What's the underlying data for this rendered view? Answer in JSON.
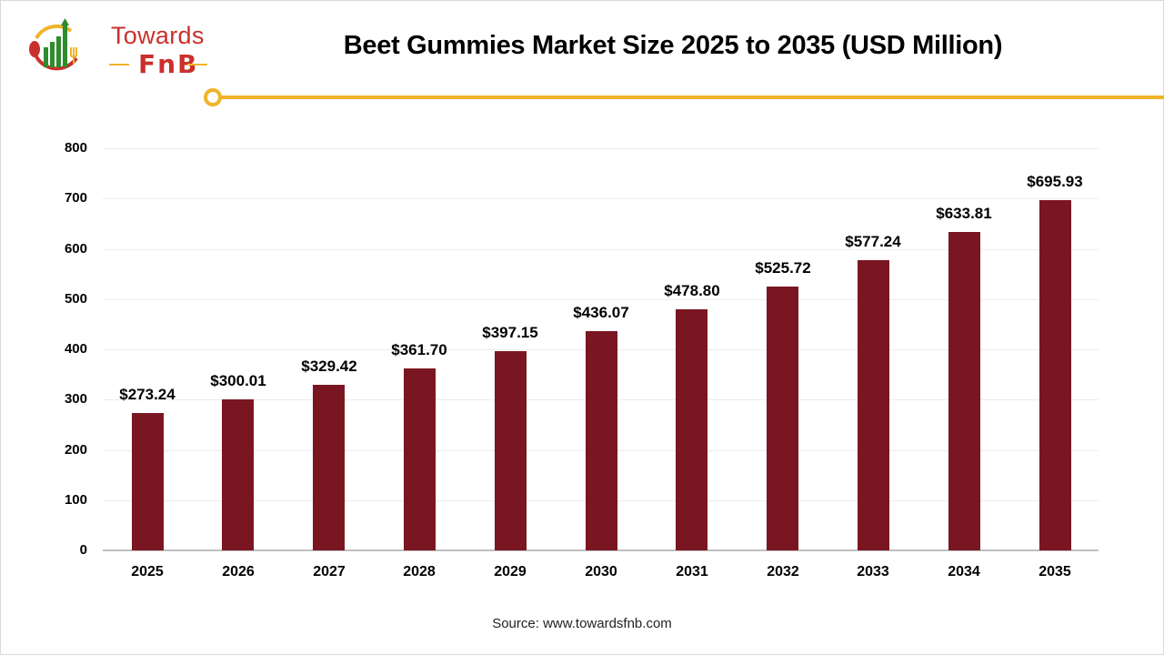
{
  "logo": {
    "line1": "Towards",
    "line2": "FnB"
  },
  "header": {
    "title": "Beet Gummies Market Size 2025 to 2035 (USD Million)"
  },
  "footer": {
    "source": "Source: www.towardsfnb.com"
  },
  "colors": {
    "bar": "#7a1621",
    "accent": "#f0b429",
    "logo_red": "#c9302c",
    "logo_green": "#2e8b2e"
  },
  "chart_data": {
    "type": "bar",
    "title": "Beet Gummies Market Size 2025 to 2035 (USD Million)",
    "xlabel": "",
    "ylabel": "",
    "categories": [
      "2025",
      "2026",
      "2027",
      "2028",
      "2029",
      "2030",
      "2031",
      "2032",
      "2033",
      "2034",
      "2035"
    ],
    "values": [
      273.24,
      300.01,
      329.42,
      361.7,
      397.15,
      436.07,
      478.8,
      525.72,
      577.24,
      633.81,
      695.93
    ],
    "value_labels": [
      "$273.24",
      "$300.01",
      "$329.42",
      "$361.70",
      "$397.15",
      "$436.07",
      "$478.80",
      "$525.72",
      "$577.24",
      "$633.81",
      "$695.93"
    ],
    "yticks": [
      "0",
      "100",
      "200",
      "300",
      "400",
      "500",
      "600",
      "700",
      "800"
    ],
    "ylim": [
      0,
      800
    ],
    "grid": true,
    "legend": null
  }
}
